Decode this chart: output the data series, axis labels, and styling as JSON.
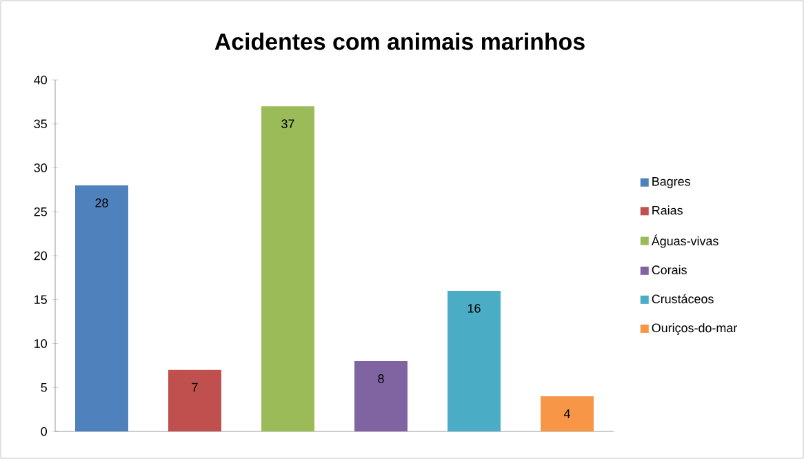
{
  "chart_data": {
    "type": "bar",
    "title": "Acidentes com animais marinhos",
    "categories": [
      null,
      null,
      null,
      null,
      null,
      null
    ],
    "series": [
      {
        "name": "Bagres",
        "color": "#4f81bd",
        "values": [
          28,
          null,
          null,
          null,
          null,
          null
        ]
      },
      {
        "name": "Raias",
        "color": "#c0504d",
        "values": [
          null,
          7,
          null,
          null,
          null,
          null
        ]
      },
      {
        "name": "Águas-vivas",
        "color": "#9bbb59",
        "values": [
          null,
          null,
          37,
          null,
          null,
          null
        ]
      },
      {
        "name": "Corais",
        "color": "#8064a2",
        "values": [
          null,
          null,
          null,
          8,
          null,
          null
        ]
      },
      {
        "name": "Crustáceos",
        "color": "#4bacc6",
        "values": [
          null,
          null,
          null,
          null,
          16,
          null
        ]
      },
      {
        "name": "Ouriços-do-mar",
        "color": "#f79646",
        "values": [
          null,
          null,
          null,
          null,
          null,
          4
        ]
      }
    ],
    "ylim": [
      0,
      40
    ],
    "yticks": [
      0,
      5,
      10,
      15,
      20,
      25,
      30,
      35,
      40
    ],
    "data_labels": true,
    "legend": "right"
  }
}
